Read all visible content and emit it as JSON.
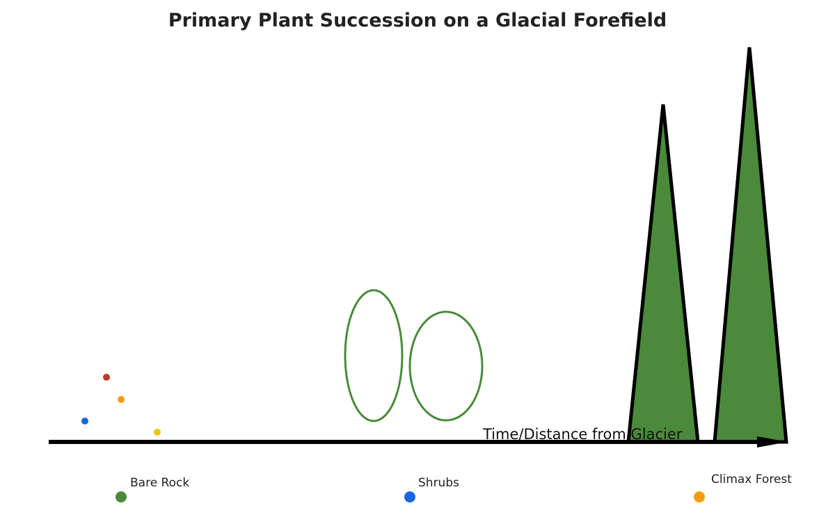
{
  "title": "Primary Plant Succession on a Glacial Forefield",
  "axis": {
    "label": "Time/Distance from Glacier"
  },
  "stages": [
    {
      "label": "Bare Rock"
    },
    {
      "label": "Shrubs"
    },
    {
      "label": "Climax Forest"
    }
  ]
}
